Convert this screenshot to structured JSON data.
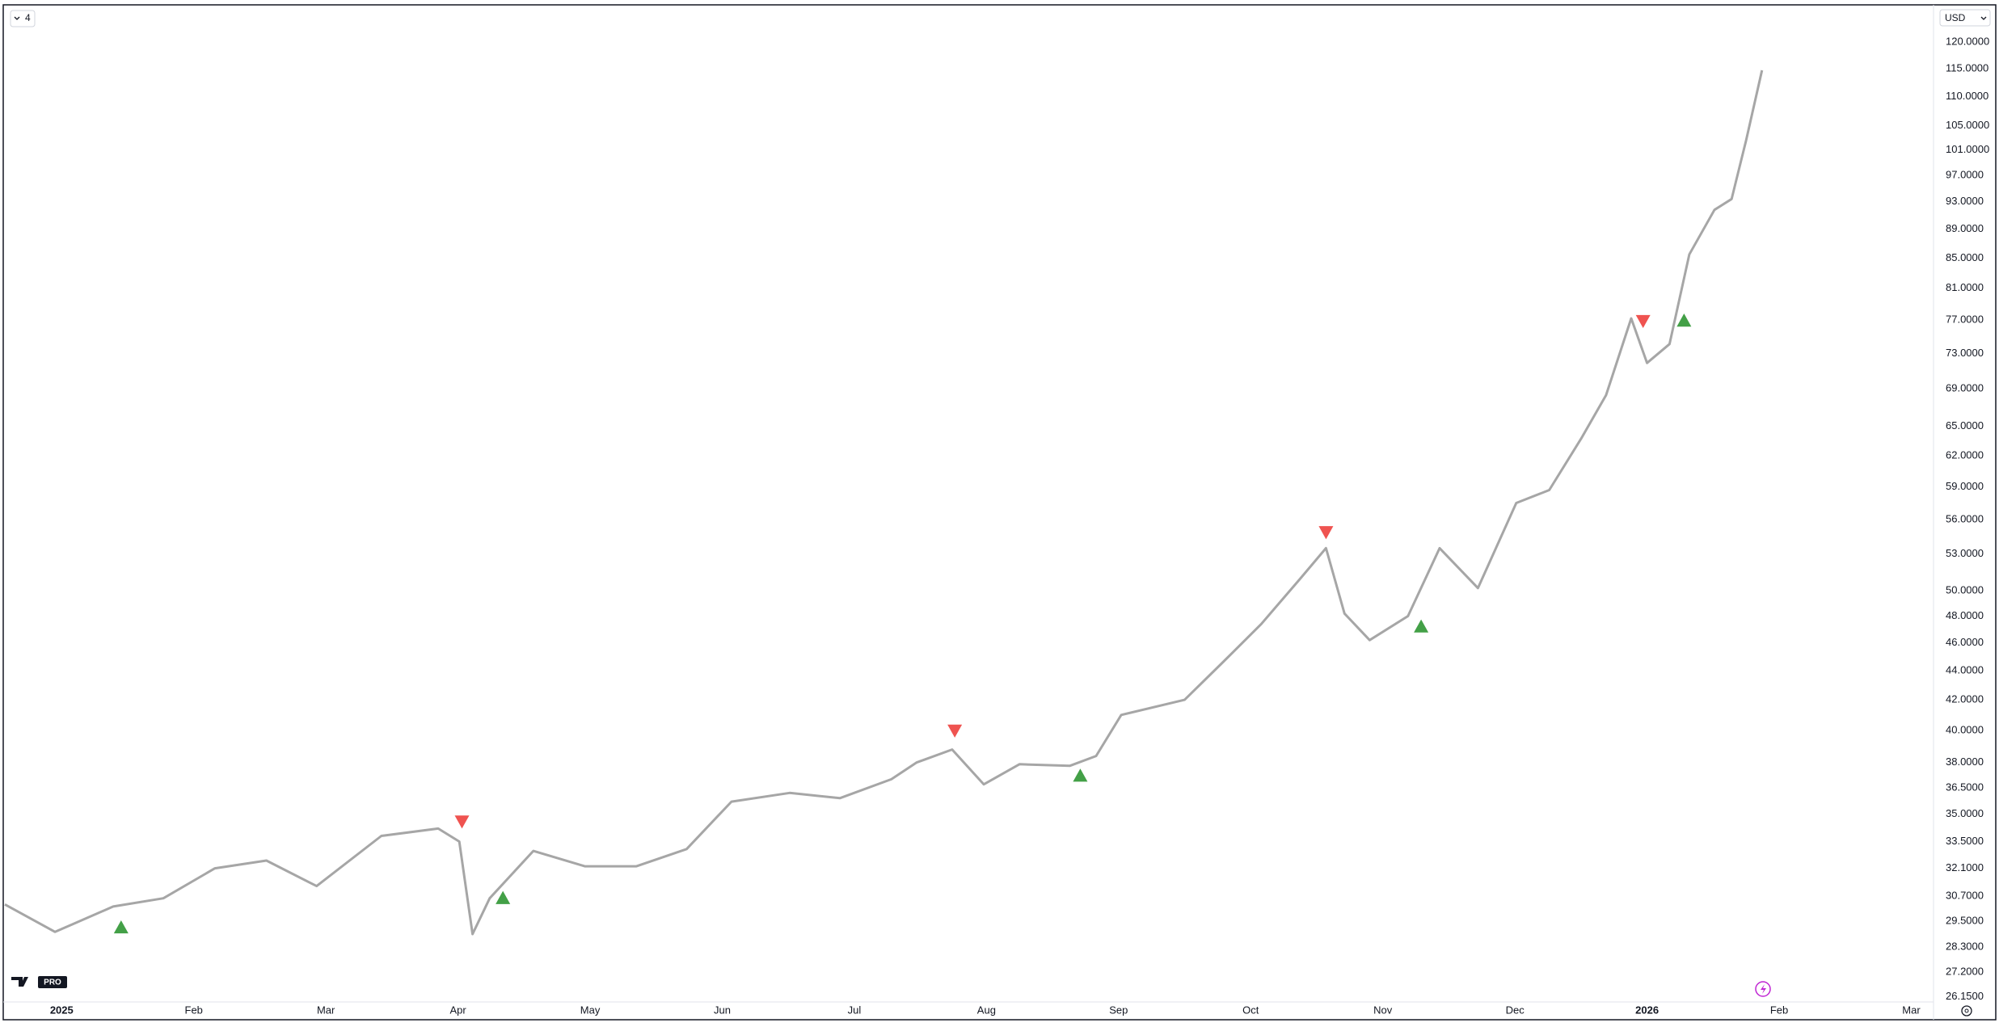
{
  "ui": {
    "interval": "4",
    "currency": "USD",
    "logo": "PRO"
  },
  "chart_data": {
    "type": "line",
    "yscale": "log",
    "grid": false,
    "xlim": [
      -0.43,
      14.15
    ],
    "ylim": [
      26,
      127
    ],
    "xticks": [
      {
        "value": 0,
        "label": "2025"
      },
      {
        "value": 1,
        "label": "Feb"
      },
      {
        "value": 2,
        "label": "Mar"
      },
      {
        "value": 3,
        "label": "Apr"
      },
      {
        "value": 4,
        "label": "May"
      },
      {
        "value": 5,
        "label": "Jun"
      },
      {
        "value": 6,
        "label": "Jul"
      },
      {
        "value": 7,
        "label": "Aug"
      },
      {
        "value": 8,
        "label": "Sep"
      },
      {
        "value": 9,
        "label": "Oct"
      },
      {
        "value": 10,
        "label": "Nov"
      },
      {
        "value": 11,
        "label": "Dec"
      },
      {
        "value": 12,
        "label": "2026"
      },
      {
        "value": 13,
        "label": "Feb"
      },
      {
        "value": 14,
        "label": "Mar"
      }
    ],
    "yticks": [
      {
        "value": 120,
        "label": "120.0000"
      },
      {
        "value": 115,
        "label": "115.0000"
      },
      {
        "value": 110,
        "label": "110.0000"
      },
      {
        "value": 105,
        "label": "105.0000"
      },
      {
        "value": 101,
        "label": "101.0000"
      },
      {
        "value": 97,
        "label": "97.0000"
      },
      {
        "value": 93,
        "label": "93.0000"
      },
      {
        "value": 89,
        "label": "89.0000"
      },
      {
        "value": 85,
        "label": "85.0000"
      },
      {
        "value": 81,
        "label": "81.0000"
      },
      {
        "value": 77,
        "label": "77.0000"
      },
      {
        "value": 73,
        "label": "73.0000"
      },
      {
        "value": 69,
        "label": "69.0000"
      },
      {
        "value": 65,
        "label": "65.0000"
      },
      {
        "value": 62,
        "label": "62.0000"
      },
      {
        "value": 59,
        "label": "59.0000"
      },
      {
        "value": 56,
        "label": "56.0000"
      },
      {
        "value": 53,
        "label": "53.0000"
      },
      {
        "value": 50,
        "label": "50.0000"
      },
      {
        "value": 48,
        "label": "48.0000"
      },
      {
        "value": 46,
        "label": "46.0000"
      },
      {
        "value": 44,
        "label": "44.0000"
      },
      {
        "value": 42,
        "label": "42.0000"
      },
      {
        "value": 40,
        "label": "40.0000"
      },
      {
        "value": 38,
        "label": "38.0000"
      },
      {
        "value": 36.5,
        "label": "36.5000"
      },
      {
        "value": 35,
        "label": "35.0000"
      },
      {
        "value": 33.5,
        "label": "33.5000"
      },
      {
        "value": 32.1,
        "label": "32.1000"
      },
      {
        "value": 30.7,
        "label": "30.7000"
      },
      {
        "value": 29.5,
        "label": "29.5000"
      },
      {
        "value": 28.3,
        "label": "28.3000"
      },
      {
        "value": 27.2,
        "label": "27.2000"
      },
      {
        "value": 26.15,
        "label": "26.1500"
      }
    ],
    "series": [
      {
        "color": "#a6a6a6",
        "x": [
          -0.43,
          -0.05,
          0.39,
          0.77,
          1.16,
          1.55,
          1.93,
          2.42,
          2.85,
          3.01,
          3.11,
          3.24,
          3.57,
          3.96,
          4.35,
          4.73,
          5.07,
          5.51,
          5.89,
          6.28,
          6.47,
          6.74,
          6.98,
          7.25,
          7.63,
          7.83,
          8.02,
          8.5,
          8.79,
          9.08,
          9.37,
          9.57,
          9.71,
          9.9,
          10.19,
          10.43,
          10.72,
          11.01,
          11.26,
          11.5,
          11.69,
          11.88,
          12.0,
          12.17,
          12.32,
          12.51,
          12.64,
          12.75,
          12.87
        ],
        "values": [
          30.3,
          29.0,
          30.2,
          30.6,
          32.1,
          32.5,
          31.2,
          33.8,
          34.2,
          33.5,
          28.9,
          30.6,
          33.0,
          32.2,
          32.2,
          33.1,
          35.7,
          36.2,
          35.9,
          37.0,
          38.0,
          38.8,
          36.7,
          37.9,
          37.8,
          38.4,
          41.0,
          42.0,
          44.6,
          47.4,
          50.9,
          53.5,
          48.2,
          46.2,
          48.0,
          53.5,
          50.2,
          57.5,
          58.7,
          63.7,
          68.3,
          77.2,
          71.9,
          74.1,
          85.5,
          91.8,
          93.4,
          102.6,
          114.7
        ]
      }
    ],
    "markers": {
      "up": {
        "color": "#43a047",
        "x": [
          0.45,
          3.34,
          7.71,
          10.29,
          12.28
        ],
        "values": [
          29.2,
          30.6,
          37.2,
          47.2,
          76.9
        ]
      },
      "down": {
        "color": "#ef5350",
        "x": [
          3.03,
          6.76,
          9.57,
          11.97
        ],
        "values": [
          34.6,
          40.0,
          54.9,
          76.9
        ]
      }
    }
  }
}
